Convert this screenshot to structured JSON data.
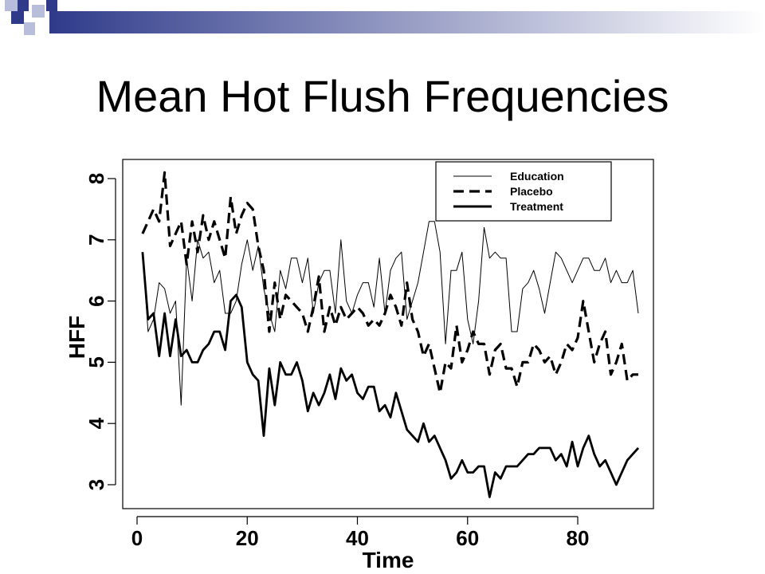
{
  "slide": {
    "title": "Mean Hot Flush Frequencies",
    "decor_colors": {
      "dark_square": "#2f3b8a",
      "light_square": "#b8bddc",
      "bar_start": "#2f3b8a",
      "bar_end": "#ffffff"
    }
  },
  "chart_data": {
    "type": "line",
    "xlabel": "Time",
    "ylabel": "HFF",
    "xlim": [
      -2,
      94
    ],
    "ylim": [
      2.7,
      8.1
    ],
    "xticks": [
      0,
      20,
      40,
      60,
      80
    ],
    "yticks": [
      3,
      4,
      5,
      6,
      7,
      8
    ],
    "legend_position": "top-right",
    "series": [
      {
        "name": "Education",
        "style": "thin",
        "x": [
          1,
          2,
          3,
          4,
          5,
          6,
          7,
          8,
          9,
          10,
          11,
          12,
          13,
          14,
          15,
          16,
          17,
          18,
          19,
          20,
          21,
          22,
          23,
          24,
          25,
          26,
          27,
          28,
          29,
          30,
          31,
          32,
          33,
          34,
          35,
          36,
          37,
          38,
          39,
          40,
          41,
          42,
          43,
          44,
          45,
          46,
          47,
          48,
          49,
          50,
          51,
          52,
          53,
          54,
          55,
          56,
          57,
          58,
          59,
          60,
          61,
          62,
          63,
          64,
          65,
          66,
          67,
          68,
          69,
          70,
          71,
          72,
          73,
          74,
          75,
          76,
          77,
          78,
          79,
          80,
          81,
          82,
          83,
          84,
          85,
          86,
          87,
          88,
          89,
          90,
          91
        ],
        "values": [
          6.8,
          5.5,
          5.7,
          6.3,
          6.2,
          5.8,
          6.0,
          4.3,
          6.7,
          6.0,
          7.0,
          6.7,
          6.8,
          6.3,
          6.5,
          5.8,
          5.8,
          6.0,
          6.6,
          7.0,
          6.5,
          6.9,
          6.2,
          5.8,
          5.5,
          6.5,
          6.2,
          6.7,
          6.7,
          6.3,
          6.7,
          5.8,
          6.3,
          6.5,
          6.5,
          5.8,
          7.0,
          6.0,
          5.8,
          6.1,
          6.3,
          6.3,
          5.9,
          6.7,
          5.8,
          6.5,
          6.7,
          6.8,
          5.7,
          6.0,
          6.3,
          6.8,
          7.3,
          7.3,
          6.8,
          5.3,
          6.5,
          6.5,
          6.8,
          5.7,
          5.3,
          6.0,
          7.2,
          6.7,
          6.8,
          6.7,
          6.7,
          5.5,
          5.5,
          6.2,
          6.3,
          6.5,
          6.2,
          5.8,
          6.3,
          6.8,
          6.7,
          6.5,
          6.3,
          6.5,
          6.7,
          6.7,
          6.5,
          6.5,
          6.7,
          6.3,
          6.5,
          6.3,
          6.3,
          6.5,
          5.8
        ]
      },
      {
        "name": "Placebo",
        "style": "dashed",
        "x": [
          1,
          2,
          3,
          4,
          5,
          6,
          7,
          8,
          9,
          10,
          11,
          12,
          13,
          14,
          15,
          16,
          17,
          18,
          19,
          20,
          21,
          22,
          23,
          24,
          25,
          26,
          27,
          28,
          29,
          30,
          31,
          32,
          33,
          34,
          35,
          36,
          37,
          38,
          39,
          40,
          41,
          42,
          43,
          44,
          45,
          46,
          47,
          48,
          49,
          50,
          51,
          52,
          53,
          54,
          55,
          56,
          57,
          58,
          59,
          60,
          61,
          62,
          63,
          64,
          65,
          66,
          67,
          68,
          69,
          70,
          71,
          72,
          73,
          74,
          75,
          76,
          77,
          78,
          79,
          80,
          81,
          82,
          83,
          84,
          85,
          86,
          87,
          88,
          89,
          90,
          91
        ],
        "values": [
          7.1,
          7.3,
          7.5,
          7.3,
          8.1,
          6.9,
          7.1,
          7.3,
          6.6,
          7.3,
          6.8,
          7.4,
          7.0,
          7.3,
          7.0,
          6.7,
          7.7,
          7.1,
          7.4,
          7.6,
          7.5,
          6.9,
          6.5,
          5.5,
          6.3,
          5.7,
          6.1,
          6.0,
          5.9,
          5.8,
          5.5,
          5.9,
          6.4,
          5.5,
          5.9,
          5.6,
          5.9,
          5.7,
          5.8,
          5.9,
          5.8,
          5.6,
          5.7,
          5.6,
          5.8,
          6.1,
          5.9,
          5.6,
          6.3,
          5.7,
          5.5,
          5.1,
          5.3,
          4.9,
          4.5,
          5.0,
          4.9,
          5.6,
          5.0,
          5.2,
          5.5,
          5.3,
          5.3,
          4.8,
          5.2,
          5.3,
          4.9,
          4.9,
          4.6,
          5.0,
          5.0,
          5.3,
          5.2,
          5.0,
          5.1,
          4.8,
          5.0,
          5.3,
          5.2,
          5.4,
          6.0,
          5.5,
          5.0,
          5.3,
          5.5,
          4.8,
          5.0,
          5.3,
          4.7,
          4.8,
          4.8
        ]
      },
      {
        "name": "Treatment",
        "style": "thick",
        "x": [
          1,
          2,
          3,
          4,
          5,
          6,
          7,
          8,
          9,
          10,
          11,
          12,
          13,
          14,
          15,
          16,
          17,
          18,
          19,
          20,
          21,
          22,
          23,
          24,
          25,
          26,
          27,
          28,
          29,
          30,
          31,
          32,
          33,
          34,
          35,
          36,
          37,
          38,
          39,
          40,
          41,
          42,
          43,
          44,
          45,
          46,
          47,
          48,
          49,
          50,
          51,
          52,
          53,
          54,
          55,
          56,
          57,
          58,
          59,
          60,
          61,
          62,
          63,
          64,
          65,
          66,
          67,
          68,
          69,
          70,
          71,
          72,
          73,
          74,
          75,
          76,
          77,
          78,
          79,
          80,
          81,
          82,
          83,
          84,
          85,
          86,
          87,
          88,
          89,
          90,
          91
        ],
        "values": [
          6.8,
          5.7,
          5.8,
          5.1,
          5.8,
          5.1,
          5.7,
          5.1,
          5.2,
          5.0,
          5.0,
          5.2,
          5.3,
          5.5,
          5.5,
          5.2,
          6.0,
          6.1,
          5.9,
          5.0,
          4.8,
          4.7,
          3.8,
          4.9,
          4.3,
          5.0,
          4.8,
          4.8,
          5.0,
          4.7,
          4.2,
          4.5,
          4.3,
          4.5,
          4.8,
          4.4,
          4.9,
          4.7,
          4.8,
          4.5,
          4.4,
          4.6,
          4.6,
          4.2,
          4.3,
          4.1,
          4.5,
          4.2,
          3.9,
          3.8,
          3.7,
          4.0,
          3.7,
          3.8,
          3.6,
          3.4,
          3.1,
          3.2,
          3.4,
          3.2,
          3.2,
          3.3,
          3.3,
          2.8,
          3.2,
          3.1,
          3.3,
          3.3,
          3.3,
          3.4,
          3.5,
          3.5,
          3.6,
          3.6,
          3.6,
          3.4,
          3.5,
          3.3,
          3.7,
          3.3,
          3.6,
          3.8,
          3.5,
          3.3,
          3.4,
          3.2,
          3.0,
          3.2,
          3.4,
          3.5,
          3.6
        ]
      }
    ]
  }
}
